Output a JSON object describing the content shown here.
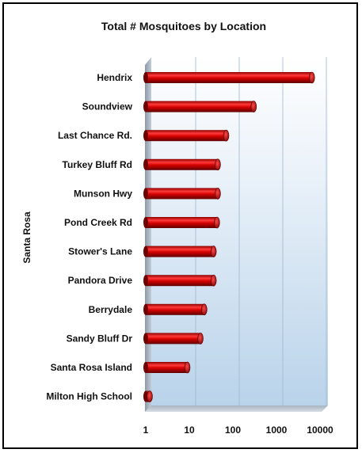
{
  "chart_data": {
    "type": "bar",
    "orientation": "horizontal",
    "title": "Total # Mosquitoes by Location",
    "ylabel": "Santa Rosa",
    "xlabel": "",
    "x_scale": "log",
    "xlim": [
      1,
      10000
    ],
    "x_ticks": [
      "1",
      "10",
      "100",
      "1000",
      "10000"
    ],
    "grid": true,
    "legend": "none",
    "bar_color": "#cc0000",
    "categories": [
      "Hendrix",
      "Soundview",
      "Last Chance Rd.",
      "Turkey Bluff Rd",
      "Munson Hwy",
      "Pond Creek Rd",
      "Stower's Lane",
      "Pandora Drive",
      "Berrydale",
      "Sandy Bluff Dr",
      "Santa Rosa Island",
      "Milton High School"
    ],
    "values": [
      6500,
      300,
      70,
      45,
      45,
      43,
      36,
      36,
      22,
      18,
      9,
      1
    ]
  }
}
